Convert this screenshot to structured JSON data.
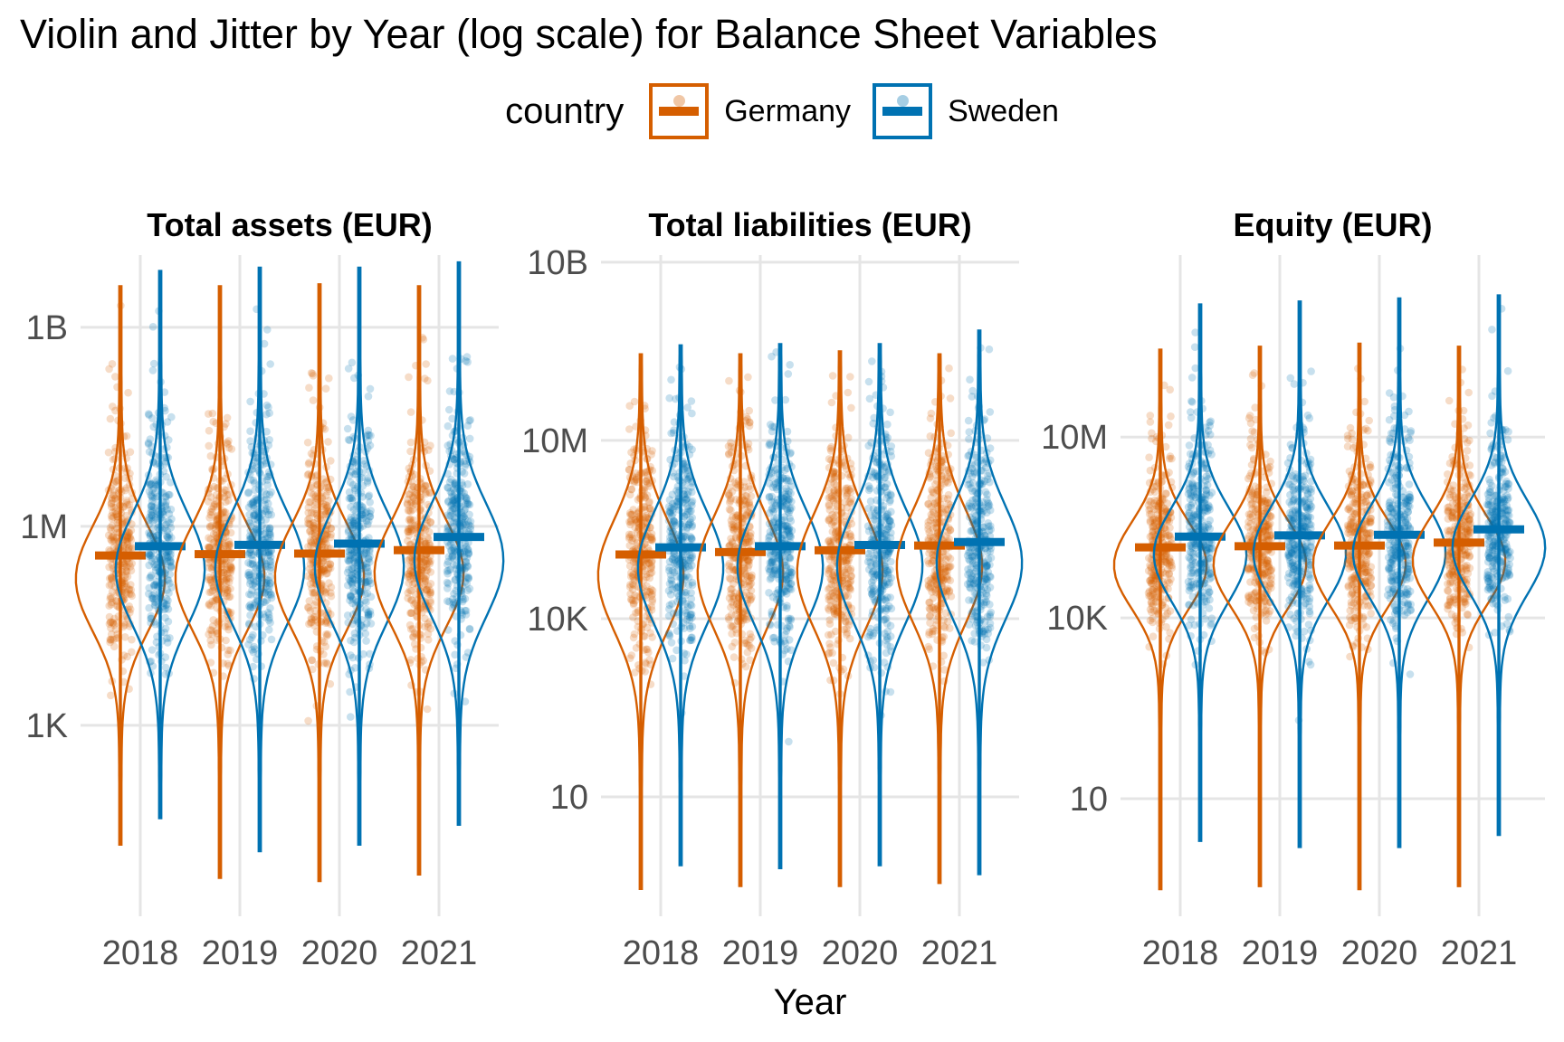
{
  "title": "Violin and Jitter by Year (log scale) for Balance Sheet Variables",
  "legend": {
    "title": "country",
    "items": [
      {
        "label": "Germany",
        "color": "#D55E00"
      },
      {
        "label": "Sweden",
        "color": "#0072B2"
      }
    ]
  },
  "chart_data": {
    "type": "violin-jitter",
    "title": "Violin and Jitter by Year (log scale) for Balance Sheet Variables",
    "x_title": "Year",
    "x": [
      "2018",
      "2019",
      "2020",
      "2021"
    ],
    "log_scale": true,
    "grid": true,
    "legend_position": "top",
    "point_alpha": 0.22,
    "facets": [
      {
        "title": "Total assets (EUR)",
        "y_log_range": [
          10.09,
          0.12
        ],
        "center_offset": -0.35,
        "y_ticks": [
          {
            "label": "1B",
            "log": 9
          },
          {
            "label": "1M",
            "log": 6
          },
          {
            "label": "1K",
            "log": 3
          }
        ],
        "series": [
          {
            "name": "Germany",
            "color": "#D55E00",
            "sigma": 0.8,
            "median_log": [
              5.56,
              5.58,
              5.59,
              5.64
            ],
            "top_log": [
              9.62,
              9.62,
              9.65,
              9.62
            ],
            "bottom_log": [
              1.2,
              0.7,
              0.65,
              0.75
            ]
          },
          {
            "name": "Sweden",
            "color": "#0072B2",
            "sigma": 0.85,
            "median_log": [
              5.7,
              5.72,
              5.74,
              5.84
            ],
            "top_log": [
              9.85,
              9.9,
              9.9,
              9.98
            ],
            "bottom_log": [
              1.6,
              1.1,
              1.2,
              1.5
            ]
          }
        ]
      },
      {
        "title": "Total liabilities (EUR)",
        "y_log_range": [
          10.12,
          -1.01
        ],
        "center_offset": -0.35,
        "y_ticks": [
          {
            "label": "10B",
            "log": 10
          },
          {
            "label": "10M",
            "log": 7
          },
          {
            "label": "10K",
            "log": 4
          },
          {
            "label": "10",
            "log": 1
          }
        ],
        "series": [
          {
            "name": "Germany",
            "color": "#D55E00",
            "sigma": 0.95,
            "median_log": [
              5.08,
              5.12,
              5.15,
              5.23
            ],
            "top_log": [
              8.45,
              8.45,
              8.5,
              8.45
            ],
            "bottom_log": [
              -0.55,
              -0.5,
              -0.5,
              -0.45
            ]
          },
          {
            "name": "Sweden",
            "color": "#0072B2",
            "sigma": 0.95,
            "median_log": [
              5.2,
              5.22,
              5.24,
              5.29
            ],
            "top_log": [
              8.6,
              8.62,
              8.62,
              8.85
            ],
            "bottom_log": [
              -0.15,
              -0.2,
              -0.15,
              -0.3
            ]
          }
        ]
      },
      {
        "title": "Equity (EUR)",
        "y_log_range": [
          10.02,
          -0.95
        ],
        "center_offset": -0.3,
        "y_ticks": [
          {
            "label": "10M",
            "log": 7
          },
          {
            "label": "10K",
            "log": 4
          },
          {
            "label": "10",
            "log": 1
          }
        ],
        "series": [
          {
            "name": "Germany",
            "color": "#D55E00",
            "sigma": 0.72,
            "median_log": [
              5.17,
              5.19,
              5.2,
              5.25
            ],
            "top_log": [
              8.45,
              8.5,
              8.55,
              8.5
            ],
            "bottom_log": [
              -0.5,
              -0.45,
              -0.5,
              -0.45
            ]
          },
          {
            "name": "Sweden",
            "color": "#0072B2",
            "sigma": 0.78,
            "median_log": [
              5.35,
              5.37,
              5.38,
              5.47
            ],
            "top_log": [
              9.2,
              9.25,
              9.3,
              9.35
            ],
            "bottom_log": [
              0.3,
              0.2,
              0.2,
              0.4
            ]
          }
        ]
      }
    ]
  }
}
